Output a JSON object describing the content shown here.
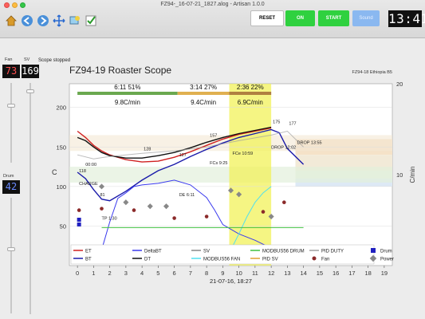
{
  "window": {
    "title": "FZ94-_16-07-21_1827.alog - Artisan 1.0.0"
  },
  "toolbar": {
    "icons": [
      "home-icon",
      "back-icon",
      "forward-icon",
      "pan-icon",
      "zoom-icon",
      "check-icon"
    ],
    "reset_label": "RESET",
    "on_label": "ON",
    "start_label": "START",
    "sound_label": "Sound",
    "timer": "13:41"
  },
  "sidebar": {
    "fan_label": "Fan",
    "sv_label": "SV",
    "fan_value": "73",
    "sv_value": "169",
    "drum_label": "Drum",
    "drum_value": "42"
  },
  "status": {
    "text": "Scope stopped"
  },
  "chart_data": {
    "type": "line",
    "title": "FZ94-19 Roaster Scope",
    "subtitle": "FZ94-18 Ethiopia B5",
    "xlabel": "21-07-16, 18:27",
    "ylabel": "C",
    "y2label": "C/min",
    "xlim": [
      -0.5,
      19.5
    ],
    "ylim": [
      0,
      230
    ],
    "y2lim": [
      0,
      20
    ],
    "x_ticks": [
      "0",
      "1",
      "2",
      "3",
      "4",
      "5",
      "6",
      "7",
      "8",
      "9",
      "10",
      "11",
      "12",
      "13",
      "14",
      "15",
      "16",
      "17",
      "18",
      "19"
    ],
    "y_ticks": [
      "50",
      "100",
      "150",
      "200"
    ],
    "y2_ticks": [
      "10",
      "20"
    ],
    "phases": [
      {
        "time": "6:11",
        "pct": "51%",
        "rate": "9.8C/min",
        "x": [
          0,
          6.2
        ],
        "color": "#6aa84f"
      },
      {
        "time": "3:14",
        "pct": "27%",
        "rate": "9.4C/min",
        "x": [
          6.2,
          9.4
        ],
        "color": "#e0b050"
      },
      {
        "time": "2:36",
        "pct": "22%",
        "rate": "6.9C/min",
        "x": [
          9.4,
          12.0
        ],
        "color": "#b08040"
      }
    ],
    "highlight_region": [
      9.4,
      12.0
    ],
    "annotations": [
      {
        "text": "118",
        "x": 0.1,
        "y": 118
      },
      {
        "text": "CHARGE",
        "x": 0.1,
        "y": 102
      },
      {
        "text": "81",
        "x": 1.4,
        "y": 88
      },
      {
        "text": "TP 1:30",
        "x": 1.5,
        "y": 58
      },
      {
        "text": "127",
        "x": 6.3,
        "y": 138
      },
      {
        "text": "DE 6:11",
        "x": 6.3,
        "y": 88
      },
      {
        "text": "157",
        "x": 8.2,
        "y": 163
      },
      {
        "text": "FCs 9:25",
        "x": 8.2,
        "y": 128
      },
      {
        "text": "FCe 10:59",
        "x": 9.6,
        "y": 140
      },
      {
        "text": "175",
        "x": 12.1,
        "y": 180
      },
      {
        "text": "DROP 12:02",
        "x": 12.0,
        "y": 148
      },
      {
        "text": "177",
        "x": 13.1,
        "y": 178
      },
      {
        "text": "DROP 13:55",
        "x": 13.6,
        "y": 154
      },
      {
        "text": "128",
        "x": 4.1,
        "y": 146
      },
      {
        "text": "00:00",
        "x": 0.5,
        "y": 126
      }
    ],
    "series": [
      {
        "name": "ET",
        "color": "#d02020",
        "x": [
          0,
          0.5,
          1,
          1.5,
          2,
          3,
          4,
          5,
          6,
          7,
          8,
          9,
          9.5,
          10,
          11,
          12
        ],
        "y": [
          170,
          162,
          152,
          145,
          140,
          134,
          131,
          132,
          137,
          144,
          152,
          160,
          163,
          166,
          170,
          174
        ]
      },
      {
        "name": "BT",
        "color": "#1a1aaa",
        "x": [
          0,
          0.5,
          1,
          1.5,
          2,
          3,
          4,
          5,
          6,
          7,
          8,
          9,
          10,
          11,
          12,
          12.5,
          13,
          14
        ],
        "y": [
          118,
          110,
          96,
          84,
          82,
          94,
          108,
          120,
          128,
          138,
          147,
          155,
          162,
          167,
          172,
          168,
          148,
          128
        ]
      },
      {
        "name": "DT",
        "color": "#111111",
        "x": [
          0,
          0.5,
          1,
          1.5,
          2,
          3,
          4,
          5,
          6,
          7,
          8,
          9,
          10,
          11,
          12
        ],
        "y": [
          162,
          158,
          150,
          143,
          139,
          136,
          136,
          139,
          143,
          149,
          156,
          162,
          167,
          171,
          175
        ]
      },
      {
        "name": "DeltaBT",
        "color": "#3a3aee",
        "x": [
          1.5,
          2,
          2.5,
          3,
          3.5,
          4,
          5,
          6,
          7,
          8,
          8.5,
          9,
          9.5,
          10,
          11,
          12
        ],
        "y": [
          20,
          55,
          85,
          92,
          100,
          102,
          104,
          108,
          102,
          86,
          70,
          52,
          46,
          40,
          32,
          22
        ]
      },
      {
        "name": "MODBUS56 FAN",
        "color": "#50e0f0",
        "x": [
          9,
          9.5,
          10,
          10.5,
          11,
          11.5,
          12
        ],
        "y": [
          8,
          20,
          40,
          62,
          80,
          92,
          100
        ]
      },
      {
        "name": "MODBUS56 DRUM",
        "color": "#40c040",
        "x": [
          1.5,
          14
        ],
        "y": [
          48,
          48
        ]
      },
      {
        "name": "PID DUTY",
        "color": "#a0a0a0",
        "x": [
          0,
          1,
          2,
          4,
          6,
          8,
          10,
          12,
          13,
          14
        ],
        "y": [
          140,
          135,
          138,
          142,
          145,
          150,
          158,
          165,
          170,
          150
        ]
      }
    ],
    "legend": {
      "placement": "bottom",
      "entries": [
        {
          "label": "ET",
          "color": "#d02020",
          "kind": "line"
        },
        {
          "label": "BT",
          "color": "#1a1aaa",
          "kind": "line"
        },
        {
          "label": "DeltaBT",
          "color": "#3a3aee",
          "kind": "line"
        },
        {
          "label": "DT",
          "color": "#111111",
          "kind": "line"
        },
        {
          "label": "SV",
          "color": "#888888",
          "kind": "line"
        },
        {
          "label": "MODBUS56 FAN",
          "color": "#50e0f0",
          "kind": "line"
        },
        {
          "label": "MODBUS56 DRUM",
          "color": "#40c040",
          "kind": "line"
        },
        {
          "label": "PID SV",
          "color": "#e0a030",
          "kind": "line"
        },
        {
          "label": "PID DUTY",
          "color": "#a0a0a0",
          "kind": "line"
        },
        {
          "label": "Fan",
          "color": "#8b2a2a",
          "kind": "dot"
        },
        {
          "label": "Drum",
          "color": "#2020c0",
          "kind": "square"
        },
        {
          "label": "Power",
          "color": "#888888",
          "kind": "diamond"
        }
      ]
    }
  }
}
